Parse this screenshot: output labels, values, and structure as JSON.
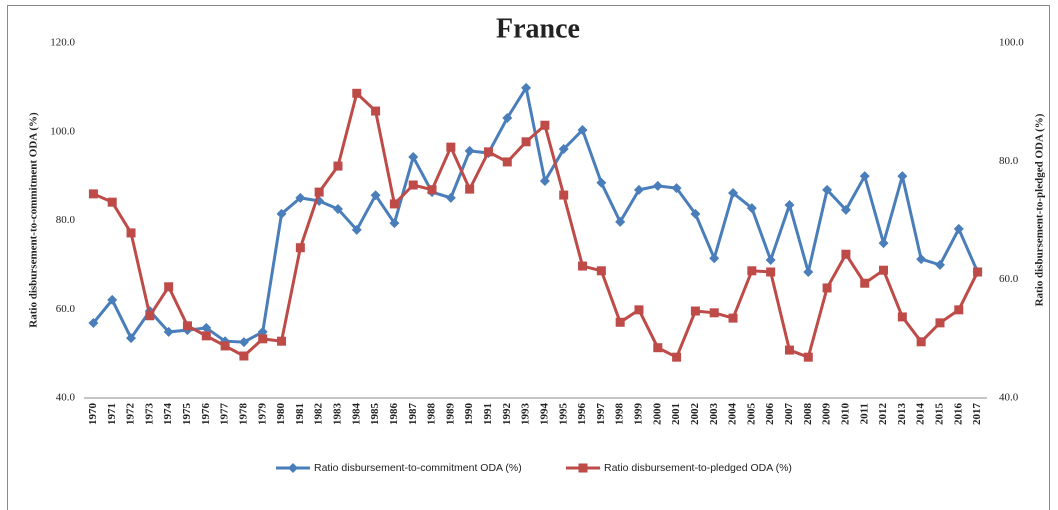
{
  "chart_data": {
    "type": "line",
    "title": "France",
    "ylabel": "Ratio disbursement-to-commitment ODA (%)",
    "y2label": "Ratio disbursement-to-pledged ODA (%)",
    "categories": [
      "1970",
      "1971",
      "1972",
      "1973",
      "1974",
      "1975",
      "1976",
      "1977",
      "1978",
      "1979",
      "1980",
      "1981",
      "1982",
      "1983",
      "1984",
      "1985",
      "1986",
      "1987",
      "1988",
      "1989",
      "1990",
      "1991",
      "1992",
      "1993",
      "1994",
      "1995",
      "1996",
      "1997",
      "1998",
      "1999",
      "2000",
      "2001",
      "2002",
      "2003",
      "2004",
      "2005",
      "2006",
      "2007",
      "2008",
      "2009",
      "2010",
      "2011",
      "2012",
      "2013",
      "2014",
      "2015",
      "2016",
      "2017"
    ],
    "series": [
      {
        "name": "Ratio disbursement-to-commitment ODA (%)",
        "color": "#4a7ebb",
        "marker": "diamond",
        "values": [
          56.9,
          62.1,
          53.5,
          59.6,
          54.9,
          55.3,
          55.8,
          52.8,
          52.6,
          54.9,
          81.5,
          85.1,
          84.4,
          82.6,
          77.9,
          85.7,
          79.4,
          94.3,
          86.4,
          85.1,
          95.7,
          95.2,
          103.1,
          109.9,
          88.9,
          96.1,
          100.4,
          88.5,
          79.7,
          86.9,
          87.8,
          87.3,
          81.5,
          71.5,
          86.2,
          82.8,
          71.1,
          83.5,
          68.4,
          86.9,
          82.4,
          90.0,
          74.9,
          90.0,
          71.3,
          70.0,
          78.1,
          68.4
        ]
      },
      {
        "name": "Ratio disbursement-to-pledged ODA (%)",
        "color": "#be4b48",
        "marker": "square",
        "axis": "y2",
        "values": [
          74.5,
          73.1,
          67.9,
          53.9,
          58.8,
          52.2,
          50.5,
          48.8,
          47.1,
          50.0,
          49.6,
          65.4,
          74.8,
          79.2,
          91.5,
          88.5,
          72.8,
          76.0,
          75.2,
          82.4,
          75.3,
          81.6,
          79.9,
          83.3,
          86.1,
          74.3,
          62.3,
          61.5,
          52.8,
          54.9,
          48.5,
          46.9,
          54.7,
          54.4,
          53.5,
          61.5,
          61.3,
          48.1,
          46.9,
          58.6,
          64.3,
          59.4,
          61.6,
          53.7,
          49.5,
          52.7,
          54.9,
          61.3
        ]
      }
    ],
    "ylim": [
      40,
      120
    ],
    "yticks": [
      {
        "value": 40,
        "label": "40.0"
      },
      {
        "value": 60,
        "label": "60.0"
      },
      {
        "value": 80,
        "label": "80.0"
      },
      {
        "value": 100,
        "label": "100.0"
      },
      {
        "value": 120,
        "label": "120.0"
      }
    ],
    "y2lim": [
      40,
      100
    ],
    "y2ticks": [
      {
        "value": 40,
        "label": "40.0"
      },
      {
        "value": 60,
        "label": "60.0"
      },
      {
        "value": 80,
        "label": "80.0"
      },
      {
        "value": 100,
        "label": "100.0"
      }
    ],
    "grid": false,
    "legend": "bottom"
  }
}
